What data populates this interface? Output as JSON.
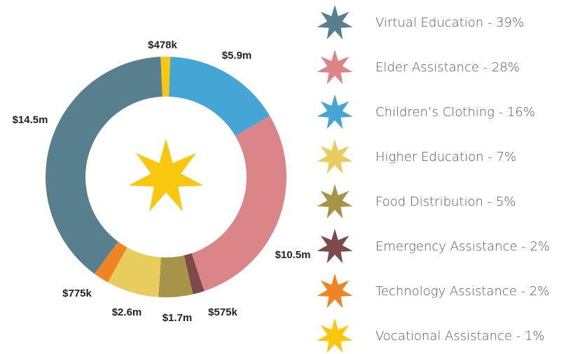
{
  "chart_data": {
    "type": "donut",
    "categories": [
      "Vocational Assistance",
      "Children's Clothing",
      "Elder Assistance",
      "Emergency Assistance",
      "Food Distribution",
      "Higher Education",
      "Technology Assistance",
      "Virtual Education"
    ],
    "values": [
      478000,
      5900000,
      10500000,
      575000,
      1700000,
      2600000,
      775000,
      14500000
    ],
    "value_labels": [
      "$478k",
      "$5.9m",
      "$10.5m",
      "$575k",
      "$1.7m",
      "$2.6m",
      "$775k",
      "$14.5m"
    ],
    "colors": [
      "#f9c80e",
      "#45a5d4",
      "#db8589",
      "#7d4a4c",
      "#a89449",
      "#e8cc5e",
      "#f08424",
      "#587f8e"
    ],
    "legend": [
      {
        "label": "Virtual Education - 39%",
        "color": "#587f8e"
      },
      {
        "label": "Elder Assistance - 28%",
        "color": "#db8589"
      },
      {
        "label": "Children’s Clothing - 16%",
        "color": "#45a5d4"
      },
      {
        "label": "Higher Education - 7%",
        "color": "#e8cc5e"
      },
      {
        "label": "Food Distribution - 5%",
        "color": "#a89449"
      },
      {
        "label": "Emergency Assistance - 2%",
        "color": "#7d4a4c"
      },
      {
        "label": "Technology Assistance - 2%",
        "color": "#f08424"
      },
      {
        "label": "Vocational Assistance - 1%",
        "color": "#f9c80e"
      }
    ]
  }
}
